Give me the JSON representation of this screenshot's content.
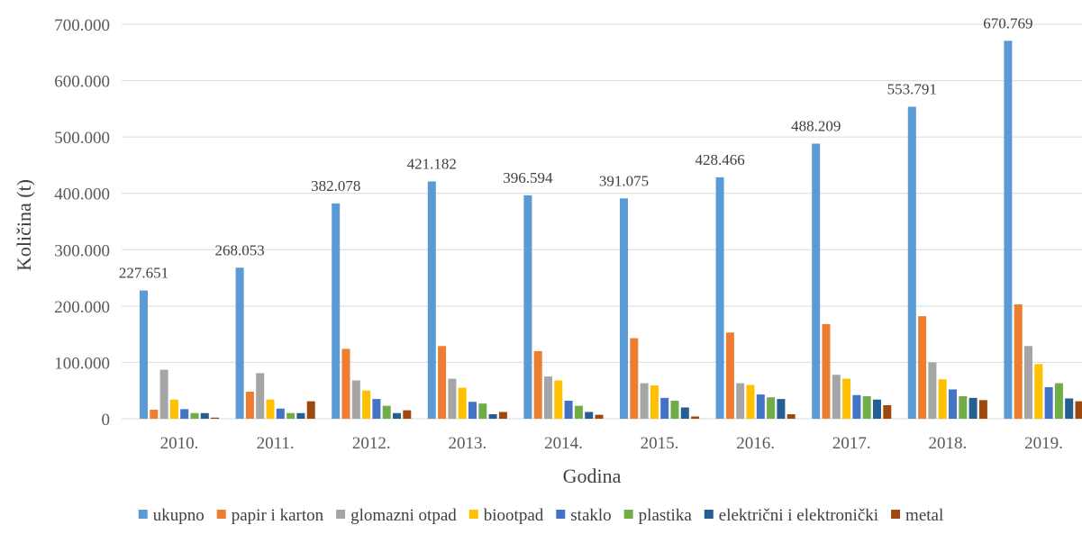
{
  "chart_data": {
    "type": "bar",
    "title": "",
    "xlabel": "Godina",
    "ylabel": "Količina (t)",
    "ylim": [
      0,
      700000
    ],
    "yticks": [
      0,
      100000,
      200000,
      300000,
      400000,
      500000,
      600000,
      700000
    ],
    "ytick_labels": [
      "0",
      "100.000",
      "200.000",
      "300.000",
      "400.000",
      "500.000",
      "600.000",
      "700.000"
    ],
    "categories": [
      "2010.",
      "2011.",
      "2012.",
      "2013.",
      "2014.",
      "2015.",
      "2016.",
      "2017.",
      "2018.",
      "2019."
    ],
    "grid": true,
    "legend_position": "bottom",
    "series": [
      {
        "name": "ukupno",
        "color": "#5b9bd5",
        "values": [
          227651,
          268053,
          382078,
          421182,
          396594,
          391075,
          428466,
          488209,
          553791,
          670769
        ],
        "data_labels": [
          "227.651",
          "268.053",
          "382.078",
          "421.182",
          "396.594",
          "391.075",
          "428.466",
          "488.209",
          "553.791",
          "670.769"
        ]
      },
      {
        "name": "papir i karton",
        "color": "#ed7d31",
        "values": [
          16000,
          48000,
          124000,
          129000,
          120000,
          143000,
          153000,
          168000,
          182000,
          203000
        ]
      },
      {
        "name": "glomazni otpad",
        "color": "#a5a5a5",
        "values": [
          87000,
          81000,
          68000,
          71000,
          75000,
          63000,
          63000,
          78000,
          100000,
          129000
        ]
      },
      {
        "name": "biootpad",
        "color": "#ffc000",
        "values": [
          34000,
          34000,
          50000,
          55000,
          68000,
          59000,
          60000,
          71000,
          70000,
          97000
        ]
      },
      {
        "name": "staklo",
        "color": "#4472c4",
        "values": [
          17000,
          18000,
          35000,
          30000,
          32000,
          37000,
          43000,
          42000,
          52000,
          56000
        ]
      },
      {
        "name": "plastika",
        "color": "#70ad47",
        "values": [
          10000,
          10000,
          23000,
          27000,
          23000,
          32000,
          38000,
          40000,
          40000,
          63000
        ]
      },
      {
        "name": "električni i elektronički",
        "color": "#255e91",
        "values": [
          10000,
          10000,
          10000,
          8000,
          12000,
          20000,
          35000,
          34000,
          37000,
          36000
        ]
      },
      {
        "name": "metal",
        "color": "#9e480e",
        "values": [
          2000,
          31000,
          15000,
          12000,
          7000,
          4000,
          8000,
          24000,
          33000,
          31000
        ]
      }
    ]
  }
}
